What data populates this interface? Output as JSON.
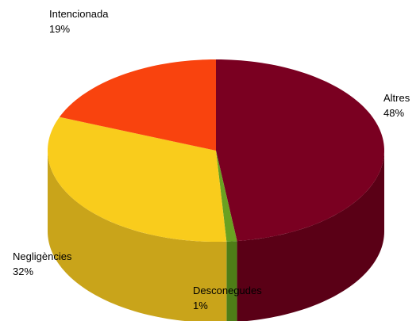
{
  "chart_data": {
    "type": "pie",
    "style": "3d",
    "slices": [
      {
        "label": "Altres",
        "value": 48,
        "value_label": "48%",
        "color": "#7a0021",
        "side_color": "#5a0016"
      },
      {
        "label": "Desconegudes",
        "value": 1,
        "value_label": "1%",
        "color": "#6aa121",
        "side_color": "#4e7d17"
      },
      {
        "label": "Negligències",
        "value": 32,
        "value_label": "32%",
        "color": "#f9cc1c",
        "side_color": "#c9a41a"
      },
      {
        "label": "Intencionada",
        "value": 19,
        "value_label": "19%",
        "color": "#f9430e",
        "side_color": "#c9350b"
      }
    ]
  }
}
